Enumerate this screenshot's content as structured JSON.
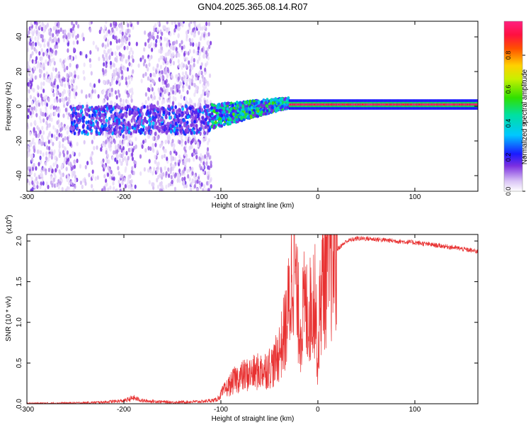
{
  "figure": {
    "title": "GN04.2025.365.08.14.R07"
  },
  "chart_data": [
    {
      "type": "heatmap",
      "name": "spectrogram",
      "xlabel": "Height of straight line (km)",
      "ylabel": "Frequency (Hz)",
      "xlim": [
        -300,
        165
      ],
      "ylim": [
        -49,
        49
      ],
      "xticks": [
        -300,
        -200,
        -100,
        0,
        100
      ],
      "yticks": [
        -40,
        -20,
        0,
        20,
        40
      ],
      "colorbar": {
        "label": "Normalized spectral amplitude",
        "range": [
          0,
          1
        ],
        "ticks": [
          "0.0",
          "0.2",
          "0.4",
          "0.6",
          "0.8"
        ],
        "tick_values": [
          0.0,
          0.2,
          0.4,
          0.6,
          0.8
        ],
        "colormap": "rainbow"
      },
      "description_bands": [
        {
          "x_range": [
            -300,
            -110
          ],
          "freq_spread_hz": 49,
          "amplitude": 0.1
        },
        {
          "x_range": [
            -110,
            -30
          ],
          "freq_center_hz": -4,
          "amplitude": 0.45
        },
        {
          "x_range": [
            -30,
            165
          ],
          "freq_center_hz": 1,
          "amplitude": 0.95
        }
      ]
    },
    {
      "type": "line",
      "name": "snr",
      "xlabel": "Height of straight line (km)",
      "ylabel": "SNR (10 * v/v)",
      "y_scale_label": "(x10",
      "y_scale_exp": "4",
      "y_scale_close": ")",
      "xlim": [
        -300,
        165
      ],
      "ylim": [
        0,
        2.08
      ],
      "xticks": [
        -300,
        -200,
        -100,
        0,
        100
      ],
      "yticks": [
        "0.0",
        "0.5",
        "1.0",
        "1.5",
        "2.0"
      ],
      "ytick_values": [
        0.0,
        0.5,
        1.0,
        1.5,
        2.0
      ],
      "color": "#e83030",
      "series": [
        {
          "x": [
            -300,
            -250,
            -225,
            -200,
            -190,
            -180,
            -150,
            -120,
            -105,
            -95,
            -85,
            -75,
            -65,
            -55,
            -45,
            -38,
            -32,
            -28,
            -25,
            -22,
            -18,
            -14,
            -10,
            -6,
            -3,
            0,
            2,
            5,
            10,
            15,
            20,
            25,
            30,
            40,
            50,
            60,
            70,
            80,
            100,
            120,
            140,
            165
          ],
          "y": [
            0.005,
            0.01,
            0.02,
            0.04,
            0.08,
            0.04,
            0.02,
            0.03,
            0.05,
            0.18,
            0.3,
            0.35,
            0.38,
            0.42,
            0.48,
            0.7,
            1.0,
            1.4,
            2.0,
            1.3,
            0.9,
            1.2,
            1.1,
            1.2,
            1.4,
            0.45,
            1.2,
            1.5,
            1.7,
            1.8,
            1.9,
            1.95,
            2.0,
            2.03,
            2.03,
            2.02,
            2.01,
            2.0,
            1.98,
            1.95,
            1.92,
            1.87
          ]
        }
      ]
    }
  ]
}
